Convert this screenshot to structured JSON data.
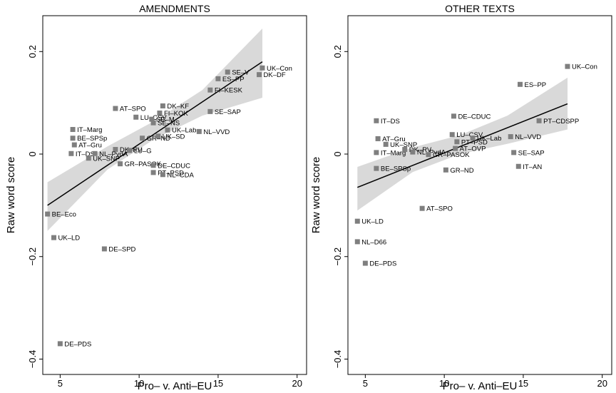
{
  "chart_data": [
    {
      "type": "scatter",
      "title": "AMENDMENTS",
      "xlabel": "Pro– v. Anti–EU",
      "ylabel": "Raw word score",
      "xlim": [
        3.9,
        20.6
      ],
      "ylim": [
        -0.43,
        0.27
      ],
      "xticks": [
        5,
        10,
        15,
        20
      ],
      "yticks": [
        -0.4,
        -0.2,
        0,
        0.2
      ],
      "xtick_labels": [
        "5",
        "10",
        "15",
        "20"
      ],
      "ytick_labels": [
        "−0.4",
        "−0.2",
        "0",
        "0.2"
      ],
      "grid": false,
      "fit_line": {
        "x": [
          4.2,
          17.8
        ],
        "y": [
          -0.1,
          0.18
        ]
      },
      "confidence_band": {
        "x": [
          4.2,
          8,
          11,
          14,
          17.8
        ],
        "lower": [
          -0.15,
          -0.03,
          0.03,
          0.075,
          0.11
        ],
        "upper": [
          -0.055,
          0.015,
          0.065,
          0.125,
          0.245
        ]
      },
      "points": [
        {
          "label": "UK–Con",
          "x": 17.8,
          "y": 0.168
        },
        {
          "label": "DK–DF",
          "x": 17.6,
          "y": 0.155
        },
        {
          "label": "SE–V",
          "x": 15.6,
          "y": 0.16
        },
        {
          "label": "ES–PP",
          "x": 15.0,
          "y": 0.147
        },
        {
          "label": "FI–KESK",
          "x": 14.5,
          "y": 0.125
        },
        {
          "label": "SE–SAP",
          "x": 14.5,
          "y": 0.083
        },
        {
          "label": "AT–SPO",
          "x": 8.5,
          "y": 0.089
        },
        {
          "label": "DK–KF",
          "x": 11.5,
          "y": 0.094
        },
        {
          "label": "FI–KOK",
          "x": 11.3,
          "y": 0.08
        },
        {
          "label": "LU–CSV",
          "x": 9.8,
          "y": 0.072
        },
        {
          "label": "SE–M",
          "x": 10.8,
          "y": 0.068
        },
        {
          "label": "SE–NS",
          "x": 10.9,
          "y": 0.061
        },
        {
          "label": "UK–Lab",
          "x": 11.8,
          "y": 0.047
        },
        {
          "label": "NL–VVD",
          "x": 13.8,
          "y": 0.044
        },
        {
          "label": "GR–ND",
          "x": 10.2,
          "y": 0.031
        },
        {
          "label": "UK–SD",
          "x": 11.2,
          "y": 0.035
        },
        {
          "label": "IT–Marg",
          "x": 5.8,
          "y": 0.048
        },
        {
          "label": "BE–SPSp",
          "x": 5.8,
          "y": 0.031
        },
        {
          "label": "AT–Gru",
          "x": 5.9,
          "y": 0.018
        },
        {
          "label": "DK–RV",
          "x": 8.5,
          "y": 0.009
        },
        {
          "label": "LU–G",
          "x": 9.4,
          "y": 0.007
        },
        {
          "label": "IT–DS",
          "x": 5.7,
          "y": 0.001
        },
        {
          "label": "NL–PvdA",
          "x": 7.2,
          "y": 0.001
        },
        {
          "label": "UK–SNP",
          "x": 6.8,
          "y": -0.008
        },
        {
          "label": "GR–PASOK",
          "x": 8.8,
          "y": -0.019
        },
        {
          "label": "DE–CDUC",
          "x": 10.9,
          "y": -0.022
        },
        {
          "label": "PT–PSD",
          "x": 10.9,
          "y": -0.036
        },
        {
          "label": "NL–CDA",
          "x": 11.5,
          "y": -0.04
        },
        {
          "label": "BE–Eco",
          "x": 4.2,
          "y": -0.117
        },
        {
          "label": "UK–LD",
          "x": 4.6,
          "y": -0.163
        },
        {
          "label": "DE–SPD",
          "x": 7.8,
          "y": -0.185
        },
        {
          "label": "DE–PDS",
          "x": 5.0,
          "y": -0.37
        }
      ]
    },
    {
      "type": "scatter",
      "title": "OTHER TEXTS",
      "xlabel": "Pro– v. Anti–EU",
      "ylabel": "Raw word score",
      "xlim": [
        3.9,
        20.6
      ],
      "ylim": [
        -0.43,
        0.27
      ],
      "xticks": [
        5,
        10,
        15,
        20
      ],
      "yticks": [
        -0.4,
        -0.2,
        0,
        0.2
      ],
      "xtick_labels": [
        "5",
        "10",
        "15",
        "20"
      ],
      "ytick_labels": [
        "−0.4",
        "−0.2",
        "0",
        "0.2"
      ],
      "grid": false,
      "fit_line": {
        "x": [
          4.5,
          17.8
        ],
        "y": [
          -0.065,
          0.098
        ]
      },
      "confidence_band": {
        "x": [
          4.5,
          8,
          11,
          14,
          17.8
        ],
        "lower": [
          -0.11,
          -0.035,
          0.0,
          0.02,
          0.048
        ],
        "upper": [
          -0.025,
          0.013,
          0.037,
          0.075,
          0.149
        ]
      },
      "points": [
        {
          "label": "UK–Con",
          "x": 17.8,
          "y": 0.171
        },
        {
          "label": "ES–PP",
          "x": 14.8,
          "y": 0.136
        },
        {
          "label": "PT–CDSPP",
          "x": 16.0,
          "y": 0.065
        },
        {
          "label": "DE–CDUC",
          "x": 10.6,
          "y": 0.074
        },
        {
          "label": "IT–DS",
          "x": 5.7,
          "y": 0.065
        },
        {
          "label": "LU–CSV",
          "x": 10.5,
          "y": 0.038
        },
        {
          "label": "AT–Gru",
          "x": 5.8,
          "y": 0.03
        },
        {
          "label": "PT–PSD",
          "x": 10.8,
          "y": 0.024
        },
        {
          "label": "UK–Lab",
          "x": 11.8,
          "y": 0.031
        },
        {
          "label": "NL–VVD",
          "x": 14.2,
          "y": 0.034
        },
        {
          "label": "UK–SNP",
          "x": 6.3,
          "y": 0.019
        },
        {
          "label": "AT–OVP",
          "x": 10.7,
          "y": 0.011
        },
        {
          "label": "SE–SAP",
          "x": 14.4,
          "y": 0.003
        },
        {
          "label": "IT–AN",
          "x": 14.7,
          "y": -0.024
        },
        {
          "label": "GR–ND",
          "x": 10.1,
          "y": -0.031
        },
        {
          "label": "BE–SPSp",
          "x": 5.7,
          "y": -0.028
        },
        {
          "label": "IT–Marg",
          "x": 5.7,
          "y": 0.003
        },
        {
          "label": "DK–RV",
          "x": 7.5,
          "y": 0.009
        },
        {
          "label": "NL–PvdA",
          "x": 8.0,
          "y": 0.004
        },
        {
          "label": "GR–PASOK",
          "x": 9.0,
          "y": -0.001
        },
        {
          "label": "UK–LD",
          "x": 4.5,
          "y": -0.131
        },
        {
          "label": "AT–SPO",
          "x": 8.6,
          "y": -0.106
        },
        {
          "label": "NL–D66",
          "x": 4.5,
          "y": -0.171
        },
        {
          "label": "DE–PDS",
          "x": 5.0,
          "y": -0.213
        }
      ]
    }
  ]
}
